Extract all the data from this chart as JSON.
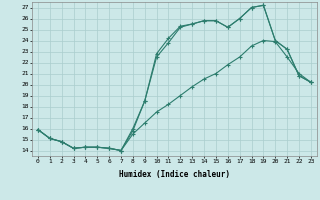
{
  "xlabel": "Humidex (Indice chaleur)",
  "xlim": [
    -0.5,
    23.5
  ],
  "ylim": [
    13.5,
    27.5
  ],
  "yticks": [
    14,
    15,
    16,
    17,
    18,
    19,
    20,
    21,
    22,
    23,
    24,
    25,
    26,
    27
  ],
  "xticks": [
    0,
    1,
    2,
    3,
    4,
    5,
    6,
    7,
    8,
    9,
    10,
    11,
    12,
    13,
    14,
    15,
    16,
    17,
    18,
    19,
    20,
    21,
    22,
    23
  ],
  "line_color": "#2d7d6e",
  "bg_color": "#cce8e8",
  "grid_color": "#aacece",
  "line1_y": [
    15.9,
    15.1,
    14.8,
    14.2,
    14.3,
    14.3,
    14.2,
    14.0,
    15.8,
    18.5,
    22.8,
    24.2,
    25.3,
    25.5,
    25.8,
    25.8,
    25.2,
    26.0,
    27.0,
    27.2,
    24.0,
    23.2,
    20.8,
    20.2
  ],
  "line2_y": [
    15.9,
    15.1,
    14.8,
    14.2,
    14.3,
    14.3,
    14.2,
    14.0,
    16.0,
    18.5,
    22.5,
    23.8,
    25.2,
    25.5,
    25.8,
    25.8,
    25.2,
    26.0,
    27.0,
    27.2,
    24.0,
    23.2,
    20.8,
    20.2
  ],
  "line3_y": [
    15.9,
    15.1,
    14.8,
    14.2,
    14.3,
    14.3,
    14.2,
    14.0,
    15.5,
    16.5,
    17.5,
    18.2,
    19.0,
    19.8,
    20.5,
    21.0,
    21.8,
    22.5,
    23.5,
    24.0,
    23.9,
    22.5,
    21.0,
    20.2
  ]
}
